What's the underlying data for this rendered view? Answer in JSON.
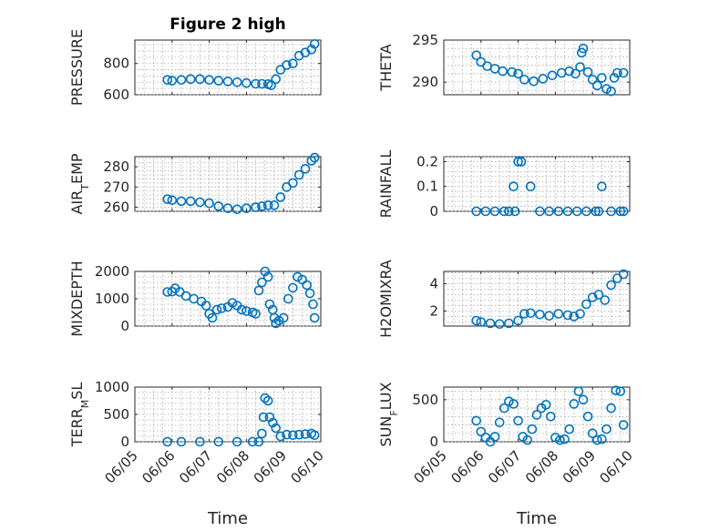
{
  "chart_data": [
    {
      "type": "scatter",
      "title": "Figure 2 high",
      "ylabel": "PRESSURE",
      "ylim": [
        600,
        950
      ],
      "yticks": [
        600,
        800
      ],
      "xlim": [
        "06/05",
        "06/10"
      ],
      "xticks": [
        "06/05",
        "06/06",
        "06/07",
        "06/08",
        "06/09",
        "06/10"
      ],
      "show_xticklabels": false,
      "grid": true,
      "x": [
        "06/05 21:00",
        "06/06 00:00",
        "06/06 06:00",
        "06/06 12:00",
        "06/06 18:00",
        "06/07 00:00",
        "06/07 06:00",
        "06/07 12:00",
        "06/07 18:00",
        "06/08 00:00",
        "06/08 06:00",
        "06/08 10:00",
        "06/08 14:00",
        "06/08 16:00",
        "06/08 19:00",
        "06/08 22:00",
        "06/09 02:00",
        "06/09 06:00",
        "06/09 10:00",
        "06/09 14:00",
        "06/09 18:00",
        "06/09 20:00"
      ],
      "y": [
        695,
        690,
        695,
        700,
        700,
        695,
        690,
        685,
        680,
        675,
        670,
        670,
        668,
        660,
        700,
        760,
        790,
        800,
        850,
        870,
        890,
        925
      ]
    },
    {
      "type": "scatter",
      "ylabel": "THETA",
      "ylim": [
        288.5,
        295
      ],
      "yticks": [
        290,
        295
      ],
      "xlim": [
        "06/05",
        "06/10"
      ],
      "xticks": [
        "06/05",
        "06/06",
        "06/07",
        "06/08",
        "06/09",
        "06/10"
      ],
      "show_xticklabels": false,
      "grid": true,
      "x": [
        "06/05 21:00",
        "06/06 00:00",
        "06/06 04:00",
        "06/06 09:00",
        "06/06 14:00",
        "06/06 20:00",
        "06/07 00:00",
        "06/07 04:00",
        "06/07 10:00",
        "06/07 16:00",
        "06/07 22:00",
        "06/08 04:00",
        "06/08 09:00",
        "06/08 13:00",
        "06/08 16:00",
        "06/08 17:00",
        "06/08 18:00",
        "06/08 21:00",
        "06/09 00:00",
        "06/09 03:00",
        "06/09 06:00",
        "06/09 09:00",
        "06/09 12:00",
        "06/09 14:00",
        "06/09 16:00",
        "06/09 20:00"
      ],
      "y": [
        293.2,
        292.4,
        291.9,
        291.6,
        291.3,
        291.2,
        291.0,
        290.3,
        290.1,
        290.4,
        290.8,
        291.1,
        291.3,
        291.0,
        291.8,
        293.5,
        294.0,
        291.2,
        290.3,
        289.6,
        290.5,
        289.2,
        288.9,
        290.5,
        291.1,
        291.1
      ]
    },
    {
      "type": "scatter",
      "ylabel": "AIR_TEMP",
      "ylim": [
        258,
        285
      ],
      "yticks": [
        260,
        270,
        280
      ],
      "xlim": [
        "06/05",
        "06/10"
      ],
      "xticks": [
        "06/05",
        "06/06",
        "06/07",
        "06/08",
        "06/09",
        "06/10"
      ],
      "show_xticklabels": false,
      "grid": true,
      "x": [
        "06/05 21:00",
        "06/06 00:00",
        "06/06 06:00",
        "06/06 12:00",
        "06/06 18:00",
        "06/07 00:00",
        "06/07 06:00",
        "06/07 12:00",
        "06/07 18:00",
        "06/08 00:00",
        "06/08 06:00",
        "06/08 10:00",
        "06/08 14:00",
        "06/08 18:00",
        "06/08 22:00",
        "06/09 02:00",
        "06/09 06:00",
        "06/09 10:00",
        "06/09 14:00",
        "06/09 18:00",
        "06/09 20:00"
      ],
      "y": [
        264,
        263.5,
        263,
        263,
        262.5,
        262,
        260.5,
        259.5,
        259,
        259.5,
        260,
        260.5,
        261,
        261,
        265,
        270,
        272,
        276,
        279,
        283,
        284.5
      ]
    },
    {
      "type": "scatter",
      "ylabel": "RAINFALL",
      "ylim": [
        0,
        0.22
      ],
      "yticks": [
        0,
        0.1,
        0.2
      ],
      "xlim": [
        "06/05",
        "06/10"
      ],
      "xticks": [
        "06/05",
        "06/06",
        "06/07",
        "06/08",
        "06/09",
        "06/10"
      ],
      "show_xticklabels": false,
      "grid": true,
      "x": [
        "06/05 21:00",
        "06/06 03:00",
        "06/06 09:00",
        "06/06 15:00",
        "06/06 18:00",
        "06/06 21:00",
        "06/06 22:00",
        "06/07 00:00",
        "06/07 02:00",
        "06/07 08:00",
        "06/07 14:00",
        "06/07 20:00",
        "06/08 02:00",
        "06/08 08:00",
        "06/08 14:00",
        "06/08 20:00",
        "06/09 02:00",
        "06/09 04:00",
        "06/09 06:00",
        "06/09 12:00",
        "06/09 18:00",
        "06/09 20:00"
      ],
      "y": [
        0,
        0,
        0,
        0,
        0,
        0.1,
        0,
        0.2,
        0.2,
        0.1,
        0,
        0,
        0,
        0,
        0,
        0,
        0,
        0,
        0.1,
        0,
        0,
        0
      ]
    },
    {
      "type": "scatter",
      "ylabel": "MIXDEPTH",
      "ylim": [
        0,
        2000
      ],
      "yticks": [
        0,
        1000,
        2000
      ],
      "xlim": [
        "06/05",
        "06/10"
      ],
      "xticks": [
        "06/05",
        "06/06",
        "06/07",
        "06/08",
        "06/09",
        "06/10"
      ],
      "show_xticklabels": false,
      "grid": true,
      "x": [
        "06/05 21:00",
        "06/06 00:00",
        "06/06 02:00",
        "06/06 05:00",
        "06/06 09:00",
        "06/06 14:00",
        "06/06 19:00",
        "06/06 22:00",
        "06/07 00:00",
        "06/07 02:00",
        "06/07 05:00",
        "06/07 08:00",
        "06/07 12:00",
        "06/07 15:00",
        "06/07 18:00",
        "06/07 21:00",
        "06/08 00:00",
        "06/08 04:00",
        "06/08 06:00",
        "06/08 08:00",
        "06/08 10:00",
        "06/08 12:00",
        "06/08 14:00",
        "06/08 15:00",
        "06/08 17:00",
        "06/08 18:00",
        "06/08 19:00",
        "06/08 21:00",
        "06/09 00:00",
        "06/09 03:00",
        "06/09 06:00",
        "06/09 09:00",
        "06/09 12:00",
        "06/09 15:00",
        "06/09 17:00",
        "06/09 19:00",
        "06/09 20:00"
      ],
      "y": [
        1250,
        1260,
        1380,
        1250,
        1100,
        1000,
        900,
        750,
        450,
        300,
        600,
        650,
        700,
        850,
        750,
        600,
        550,
        500,
        450,
        1300,
        1600,
        2000,
        1800,
        800,
        600,
        300,
        100,
        200,
        300,
        1000,
        1400,
        1800,
        1700,
        1500,
        1200,
        800,
        300
      ]
    },
    {
      "type": "scatter",
      "ylabel": "H2OMIXRA",
      "ylim": [
        0.9,
        4.9
      ],
      "yticks": [
        2,
        4
      ],
      "xlim": [
        "06/05",
        "06/10"
      ],
      "xticks": [
        "06/05",
        "06/06",
        "06/07",
        "06/08",
        "06/09",
        "06/10"
      ],
      "show_xticklabels": false,
      "grid": true,
      "x": [
        "06/05 21:00",
        "06/06 00:00",
        "06/06 06:00",
        "06/06 12:00",
        "06/06 18:00",
        "06/07 00:00",
        "06/07 04:00",
        "06/07 08:00",
        "06/07 14:00",
        "06/07 20:00",
        "06/08 02:00",
        "06/08 08:00",
        "06/08 12:00",
        "06/08 16:00",
        "06/08 20:00",
        "06/09 00:00",
        "06/09 04:00",
        "06/09 08:00",
        "06/09 12:00",
        "06/09 16:00",
        "06/09 20:00"
      ],
      "y": [
        1.3,
        1.2,
        1.1,
        1.05,
        1.1,
        1.3,
        1.8,
        1.85,
        1.75,
        1.65,
        1.8,
        1.7,
        1.6,
        1.8,
        2.5,
        3.0,
        3.2,
        2.8,
        3.9,
        4.4,
        4.7
      ]
    },
    {
      "type": "scatter",
      "ylabel": "TERR_MSL",
      "ylim": [
        0,
        1000
      ],
      "yticks": [
        0,
        500,
        1000
      ],
      "xlim": [
        "06/05",
        "06/10"
      ],
      "xticks": [
        "06/05",
        "06/06",
        "06/07",
        "06/08",
        "06/09",
        "06/10"
      ],
      "xticklabels": [
        "06/05",
        "06/06",
        "06/07",
        "06/08",
        "06/09",
        "06/10"
      ],
      "xlabel": "Time",
      "grid": true,
      "x": [
        "06/05 21:00",
        "06/06 06:00",
        "06/06 18:00",
        "06/07 06:00",
        "06/07 18:00",
        "06/08 04:00",
        "06/08 08:00",
        "06/08 10:00",
        "06/08 11:00",
        "06/08 12:00",
        "06/08 14:00",
        "06/08 15:00",
        "06/08 17:00",
        "06/08 19:00",
        "06/08 22:00",
        "06/09 02:00",
        "06/09 06:00",
        "06/09 10:00",
        "06/09 14:00",
        "06/09 18:00",
        "06/09 20:00"
      ],
      "y": [
        0,
        0,
        0,
        0,
        0,
        0,
        0,
        150,
        450,
        800,
        750,
        450,
        350,
        250,
        100,
        130,
        120,
        130,
        140,
        150,
        120
      ]
    },
    {
      "type": "scatter",
      "ylabel": "SUN_FLUX",
      "ylim": [
        0,
        650
      ],
      "yticks": [
        0,
        500
      ],
      "xlim": [
        "06/05",
        "06/10"
      ],
      "xticks": [
        "06/05",
        "06/06",
        "06/07",
        "06/08",
        "06/09",
        "06/10"
      ],
      "xticklabels": [
        "06/05",
        "06/06",
        "06/07",
        "06/08",
        "06/09",
        "06/10"
      ],
      "xlabel": "Time",
      "grid": true,
      "x": [
        "06/05 21:00",
        "06/06 00:00",
        "06/06 03:00",
        "06/06 06:00",
        "06/06 09:00",
        "06/06 12:00",
        "06/06 15:00",
        "06/06 18:00",
        "06/06 21:00",
        "06/07 00:00",
        "06/07 03:00",
        "06/07 06:00",
        "06/07 09:00",
        "06/07 12:00",
        "06/07 15:00",
        "06/07 18:00",
        "06/07 21:00",
        "06/08 00:00",
        "06/08 03:00",
        "06/08 06:00",
        "06/08 09:00",
        "06/08 12:00",
        "06/08 15:00",
        "06/08 18:00",
        "06/08 21:00",
        "06/09 00:00",
        "06/09 03:00",
        "06/09 06:00",
        "06/09 09:00",
        "06/09 12:00",
        "06/09 15:00",
        "06/09 18:00",
        "06/09 20:00"
      ],
      "y": [
        250,
        120,
        50,
        0,
        60,
        230,
        400,
        480,
        450,
        250,
        60,
        20,
        150,
        320,
        400,
        440,
        300,
        50,
        20,
        30,
        150,
        450,
        600,
        500,
        300,
        100,
        20,
        30,
        150,
        400,
        610,
        600,
        200
      ]
    }
  ]
}
